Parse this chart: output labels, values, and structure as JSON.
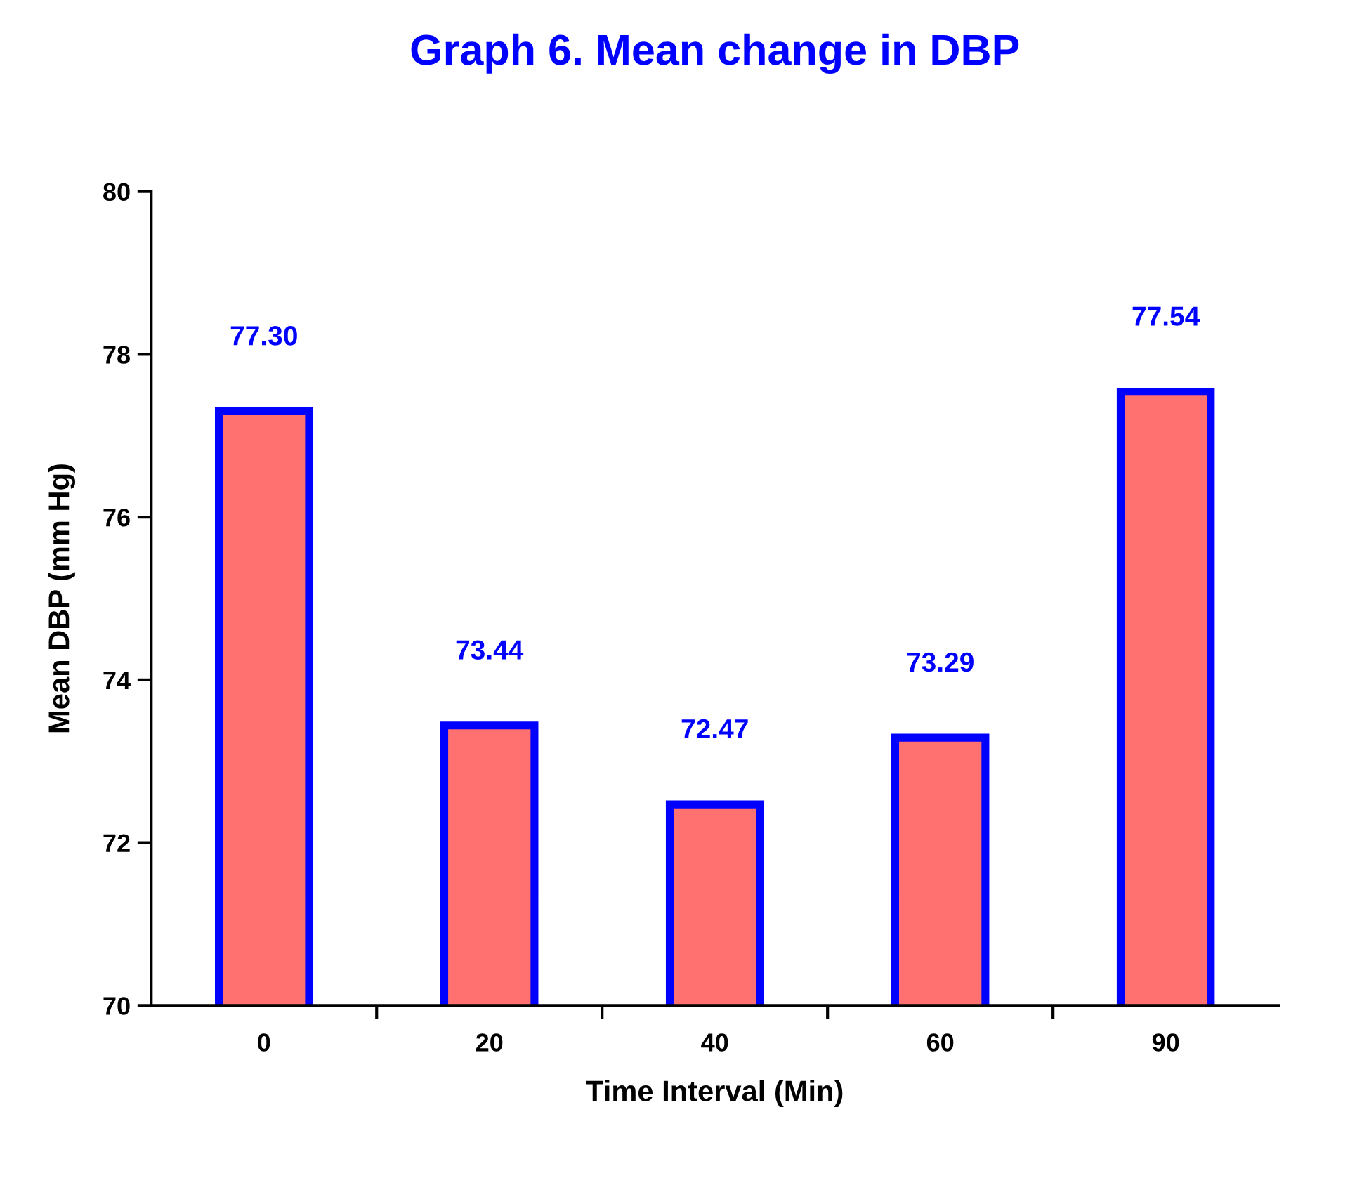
{
  "chart_data": {
    "type": "bar",
    "title": "Graph 6. Mean change in DBP",
    "xlabel": "Time Interval (Min)",
    "ylabel": "Mean DBP (mm Hg)",
    "categories": [
      "0",
      "20",
      "40",
      "60",
      "90"
    ],
    "values": [
      77.3,
      73.44,
      72.47,
      73.29,
      77.54
    ],
    "value_labels": [
      "77.30",
      "73.44",
      "72.47",
      "73.29",
      "77.54"
    ],
    "color": "#ff7070",
    "ylim": [
      70,
      80
    ],
    "yticks": [
      70,
      72,
      74,
      76,
      78,
      80
    ],
    "grid": false,
    "legend": false
  }
}
